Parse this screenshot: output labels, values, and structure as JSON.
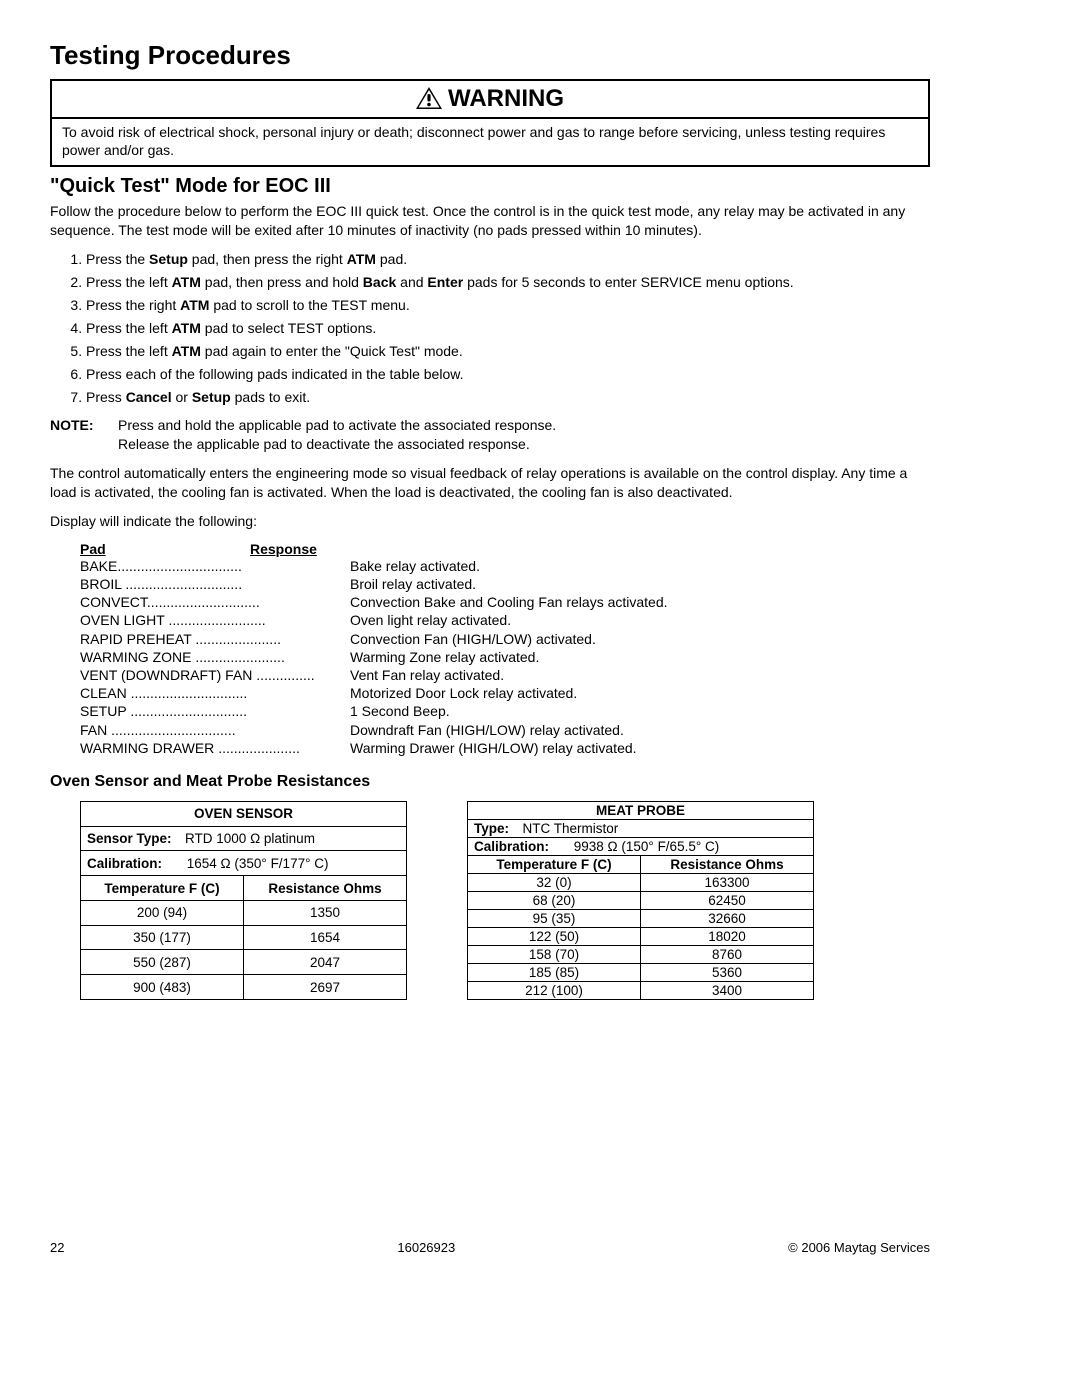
{
  "page_title": "Testing Procedures",
  "warning": {
    "header": "WARNING",
    "body": "To avoid risk of electrical shock, personal injury or death; disconnect power and gas to range before servicing, unless testing requires power and/or gas."
  },
  "section_title": "\"Quick Test\" Mode for EOC III",
  "intro": "Follow the procedure below to perform the EOC III quick test.  Once the control is in the quick test mode, any relay may be activated in any sequence.  The test mode will be exited after 10 minutes of inactivity (no pads pressed within 10 minutes).",
  "steps": [
    {
      "pre": "Press the ",
      "b1": "Setup",
      "mid1": " pad, then press the right ",
      "b2": "ATM",
      "post": " pad."
    },
    {
      "pre": "Press the left ",
      "b1": "ATM",
      "mid1": " pad, then press and hold ",
      "b2": "Back",
      "mid2": " and ",
      "b3": "Enter",
      "post": " pads for 5 seconds to enter SERVICE menu options."
    },
    {
      "pre": "Press the right ",
      "b1": "ATM",
      "post": " pad to scroll to the TEST menu."
    },
    {
      "pre": "Press the left ",
      "b1": "ATM",
      "post": " pad to select TEST options."
    },
    {
      "pre": "Press the left ",
      "b1": "ATM",
      "post": " pad again to enter the \"Quick Test\" mode."
    },
    {
      "pre": "Press each of the following pads indicated in the table below.",
      "b1": "",
      "post": ""
    },
    {
      "pre": "Press ",
      "b1": "Cancel",
      "mid1": " or ",
      "b2": "Setup",
      "post": " pads to exit."
    }
  ],
  "note_label": "NOTE:",
  "note_text1": "Press and hold the applicable pad to activate the associated response.",
  "note_text2": "Release the applicable pad to deactivate the associated response.",
  "para2": "The control automatically enters the engineering mode so visual feedback of relay operations is available on the control display.  Any time a load is activated, the cooling fan is activated.  When the load is deactivated, the cooling fan is also deactivated.",
  "para3": "Display will indicate the following:",
  "pr_headers": {
    "pad": "Pad",
    "response": "Response"
  },
  "pad_response": [
    {
      "pad": "BAKE",
      "response": "Bake relay activated."
    },
    {
      "pad": "BROIL ",
      "response": "Broil relay activated."
    },
    {
      "pad": "CONVECT",
      "response": "Convection Bake and Cooling Fan relays activated."
    },
    {
      "pad": "OVEN LIGHT ",
      "response": "Oven light relay activated."
    },
    {
      "pad": "RAPID PREHEAT ",
      "response": "Convection Fan (HIGH/LOW) activated."
    },
    {
      "pad": "WARMING ZONE ",
      "response": "Warming Zone relay activated."
    },
    {
      "pad": "VENT (DOWNDRAFT) FAN ",
      "response": "Vent Fan relay activated."
    },
    {
      "pad": "CLEAN ",
      "response": "Motorized Door Lock relay activated."
    },
    {
      "pad": "SETUP ",
      "response": "1 Second Beep."
    },
    {
      "pad": "FAN ",
      "response": "Downdraft Fan (HIGH/LOW) relay activated."
    },
    {
      "pad": "WARMING DRAWER ",
      "response": "Warming Drawer (HIGH/LOW) relay activated."
    }
  ],
  "resistance_title": "Oven Sensor and Meat Probe Resistances",
  "oven_sensor": {
    "title": "OVEN SENSOR",
    "type_label": "Sensor Type:",
    "type_value": "RTD 1000 Ω platinum",
    "cal_label": "Calibration:",
    "cal_value": "1654 Ω (350° F/177° C)",
    "col1": "Temperature F (C)",
    "col2": "Resistance Ohms",
    "rows": [
      {
        "t": "200 (94)",
        "r": "1350"
      },
      {
        "t": "350 (177)",
        "r": "1654"
      },
      {
        "t": "550 (287)",
        "r": "2047"
      },
      {
        "t": "900 (483)",
        "r": "2697"
      }
    ]
  },
  "meat_probe": {
    "title": "MEAT PROBE",
    "type_label": "Type:",
    "type_value": "NTC Thermistor",
    "cal_label": "Calibration:",
    "cal_value": "9938 Ω (150° F/65.5° C)",
    "col1": "Temperature F (C)",
    "col2": "Resistance Ohms",
    "rows": [
      {
        "t": "32 (0)",
        "r": "163300"
      },
      {
        "t": "68 (20)",
        "r": "62450"
      },
      {
        "t": "95 (35)",
        "r": "32660"
      },
      {
        "t": "122 (50)",
        "r": "18020"
      },
      {
        "t": "158 (70)",
        "r": "8760"
      },
      {
        "t": "185 (85)",
        "r": "5360"
      },
      {
        "t": "212 (100)",
        "r": "3400"
      }
    ]
  },
  "footer": {
    "page": "22",
    "doc": "16026923",
    "copyright": "© 2006 Maytag Services"
  }
}
